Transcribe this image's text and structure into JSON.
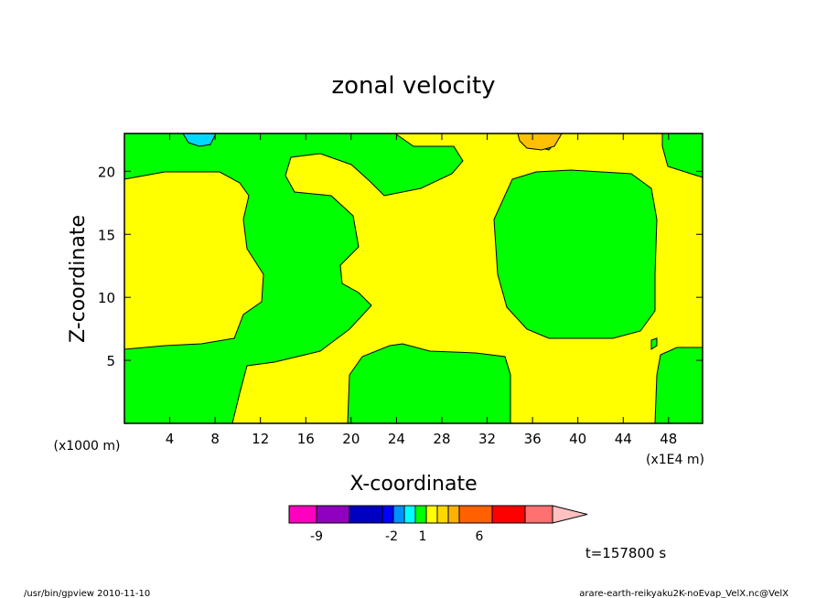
{
  "colors": {
    "green": "#00ff00",
    "yellow": "#ffff00",
    "cyan": "#00d8ff",
    "orange": "#ffc000",
    "frame": "#000000"
  },
  "chart_data": {
    "type": "heatmap",
    "title": "zonal velocity",
    "xlabel": "X-coordinate",
    "ylabel": "Z-coordinate",
    "x_scale_note": "(x1000 m)",
    "x_scale_note2": "(x1E4 m)",
    "xlim": [
      0,
      51
    ],
    "ylim": [
      0,
      23
    ],
    "x_ticks": [
      4,
      8,
      12,
      16,
      20,
      24,
      28,
      32,
      36,
      40,
      44,
      48
    ],
    "y_ticks": [
      5,
      10,
      15,
      20
    ],
    "colorbar": {
      "colors": [
        "#ff00c0",
        "#9000c0",
        "#0000c0",
        "#0000ff",
        "#0090ff",
        "#00ffff",
        "#00ff00",
        "#ffff00",
        "#ffd800",
        "#ffb000",
        "#ff6000",
        "#ff0000",
        "#ff7070",
        "#ffc0c0"
      ],
      "tick_labels": [
        "-9",
        "-2",
        "1",
        "6"
      ]
    },
    "time_label": "t=157800 s",
    "footer_left": "/usr/bin/gpview  2010-11-10",
    "footer_right": "arare-earth-reikyaku2K-noEvap_VelX.nc@VelX"
  }
}
